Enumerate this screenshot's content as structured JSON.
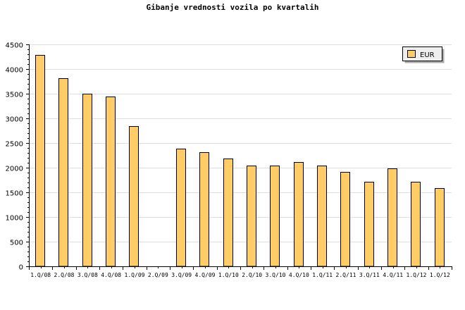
{
  "chart_data": {
    "type": "bar",
    "title": "Gibanje vrednosti vozila po kvartalih",
    "xlabel": "",
    "ylabel": "",
    "ylim": [
      0,
      4500
    ],
    "yticks": [
      0,
      500,
      1000,
      1500,
      2000,
      2500,
      3000,
      3500,
      4000,
      4500
    ],
    "grid": true,
    "legend_position": "top-right",
    "categories": [
      "1.Q/08",
      "2.Q/08",
      "3.Q/08",
      "4.Q/08",
      "1.Q/09",
      "2.Q/09",
      "3.Q/09",
      "4.Q/09",
      "1.Q/10",
      "2.Q/10",
      "3.Q/10",
      "4.Q/10",
      "1.Q/11",
      "2.Q/11",
      "3.Q/11",
      "4.Q/11",
      "1.Q/12",
      "1.Q/12"
    ],
    "series": [
      {
        "name": "EUR",
        "color": "#ffcc66",
        "values": [
          4280,
          3820,
          3500,
          3440,
          2840,
          0,
          2390,
          2310,
          2190,
          2050,
          2050,
          2110,
          2050,
          1920,
          1720,
          1980,
          1720,
          1580
        ]
      }
    ]
  }
}
